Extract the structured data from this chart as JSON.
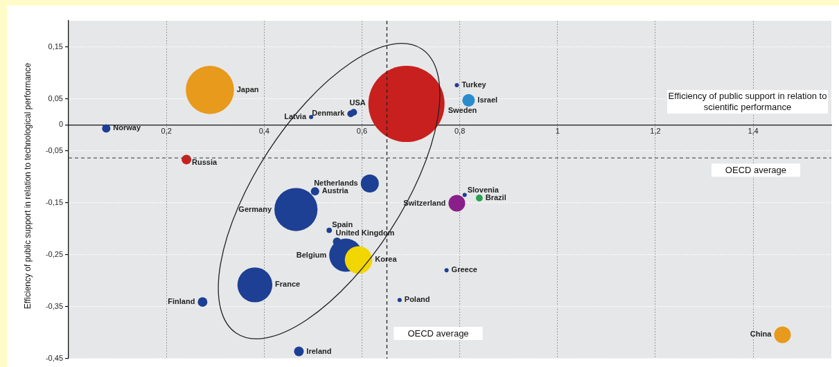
{
  "chart_data": {
    "type": "bubble",
    "xlabel": "Efficiency of public support in relation to scientific performance",
    "ylabel": "Efficiency of public support in relation to technological performance",
    "x": [
      0.691,
      0.289,
      0.465,
      0.381,
      0.549,
      0.567,
      0.593,
      0.616,
      0.794,
      1.46,
      0.818,
      0.241,
      0.274,
      0.471,
      0.504,
      0.077,
      0.84,
      0.577,
      0.583,
      0.533,
      0.496,
      0.794,
      0.81,
      0.773,
      0.677
    ],
    "values": [
      0.04,
      0.067,
      -0.163,
      -0.308,
      -0.225,
      -0.251,
      -0.26,
      -0.113,
      -0.151,
      -0.404,
      0.047,
      -0.067,
      -0.341,
      -0.436,
      -0.128,
      -0.007,
      -0.141,
      0.021,
      0.024,
      -0.203,
      0.015,
      0.076,
      -0.135,
      -0.28,
      -0.337
    ],
    "sizes": [
      1,
      0.4,
      0.32,
      0.21,
      0.012,
      0.19,
      0.13,
      0.056,
      0.048,
      0.048,
      0.027,
      0.016,
      0.016,
      0.016,
      0.012,
      0.012,
      0.008,
      0.008,
      0.008,
      0.005,
      0.003,
      0.003,
      0.003,
      0.003,
      0.003
    ],
    "colors": [
      "#c8201e",
      "#e89a1c",
      "#1d3f94",
      "#1d3f94",
      "#1d3f94",
      "#1d3f94",
      "#f2d600",
      "#1d3f94",
      "#8a1f8a",
      "#e89a1c",
      "#2a8ccc",
      "#c8201e",
      "#1d3f94",
      "#1d3f94",
      "#1d3f94",
      "#1d3f94",
      "#2aa050",
      "#1d3f94",
      "#1d3f94",
      "#1d3f94",
      "#1d3f94",
      "#1d3f94",
      "#1d3f94",
      "#1d3f94",
      "#1d3f94"
    ],
    "value_labels": [
      "Sweden",
      "Japan",
      "Germany",
      "France",
      "United Kingdom",
      "Belgium",
      "Korea",
      "Netherlands",
      "Switzerland",
      "China",
      "Israel",
      "Russia",
      "Finland",
      "Ireland",
      "Austria",
      "Norway",
      "Brazil",
      "Denmark",
      "USA",
      "Spain",
      "Latvia",
      "Turkey",
      "Slovenia",
      "Greece",
      "Poland"
    ],
    "xlim": [
      0,
      1.56
    ],
    "xticks": [
      {
        "value": 0.2,
        "label": "0,2"
      },
      {
        "value": 0.4,
        "label": "0,4"
      },
      {
        "value": 0.6,
        "label": "0,6"
      },
      {
        "value": 0.8,
        "label": "0,8"
      },
      1,
      {
        "value": 1.2,
        "label": "1,2"
      },
      {
        "value": 1.4,
        "label": "1,4"
      }
    ],
    "ylim": [
      -0.45,
      0.2
    ],
    "yticks": [
      {
        "value": 0.15,
        "label": "0,15"
      },
      {
        "value": 0.05,
        "label": "0,05"
      },
      0,
      {
        "value": -0.05,
        "label": "-0,05"
      },
      {
        "value": -0.15,
        "label": "-0,15"
      },
      {
        "value": -0.25,
        "label": "-0,25"
      },
      {
        "value": -0.35,
        "label": "-0,35"
      },
      {
        "value": -0.45,
        "label": "-0,45"
      }
    ],
    "grid": true,
    "ref_lines": [
      {
        "axis": "x",
        "value": 0.651,
        "label": "OECD average",
        "color": "#222222",
        "line_style": "dashed"
      },
      {
        "axis": "y",
        "value": -0.064,
        "label": "OECD average",
        "color": "#555555",
        "line_style": "dashed"
      }
    ]
  }
}
